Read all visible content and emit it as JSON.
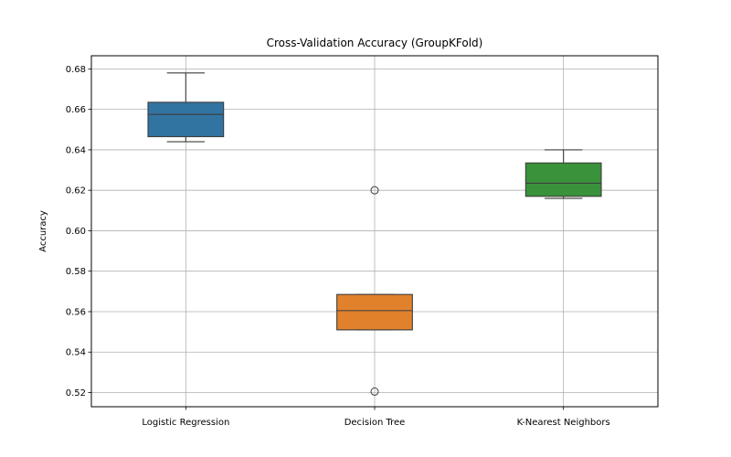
{
  "chart_data": {
    "type": "box",
    "title": "Cross-Validation Accuracy (GroupKFold)",
    "xlabel": "",
    "ylabel": "Accuracy",
    "ylim": [
      0.513,
      0.6865
    ],
    "yticks": [
      0.52,
      0.54,
      0.56,
      0.58,
      0.6,
      0.62,
      0.64,
      0.66,
      0.68
    ],
    "ytick_labels": [
      "0.52",
      "0.54",
      "0.56",
      "0.58",
      "0.60",
      "0.62",
      "0.64",
      "0.66",
      "0.68"
    ],
    "grid": true,
    "categories": [
      "Logistic Regression",
      "Decision Tree",
      "K-Nearest Neighbors"
    ],
    "series": [
      {
        "category": "Logistic Regression",
        "color": "#3274a1",
        "whisker_low": 0.644,
        "q1": 0.6465,
        "median": 0.6575,
        "q3": 0.6635,
        "whisker_high": 0.678,
        "outliers": []
      },
      {
        "category": "Decision Tree",
        "color": "#e1812c",
        "whisker_low": 0.551,
        "q1": 0.551,
        "median": 0.5605,
        "q3": 0.5685,
        "whisker_high": 0.5685,
        "outliers": [
          0.62,
          0.5205
        ]
      },
      {
        "category": "K-Nearest Neighbors",
        "color": "#3a923a",
        "whisker_low": 0.616,
        "q1": 0.617,
        "median": 0.6235,
        "q3": 0.6335,
        "whisker_high": 0.64,
        "outliers": []
      }
    ]
  }
}
